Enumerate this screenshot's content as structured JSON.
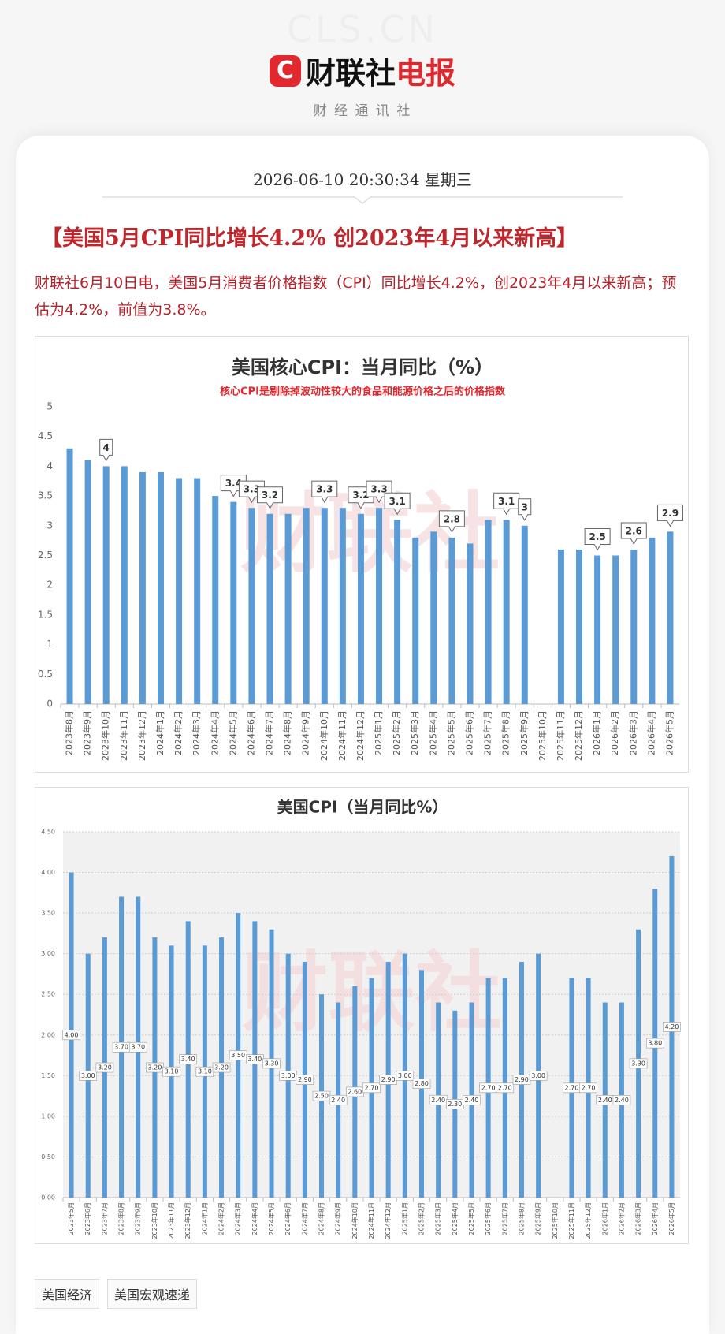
{
  "header": {
    "watermark": "CLS.CN",
    "logo_mark": "C",
    "logo_name": "财联社",
    "logo_accent": "电报",
    "tagline": "财 经 通 讯 社"
  },
  "article": {
    "datetime": "2026-06-10 20:30:34 星期三",
    "headline": "【美国5月CPI同比增长4.2% 创2023年4月以来新高】",
    "body": "财联社6月10日电，美国5月消费者价格指数（CPI）同比增长4.2%，创2023年4月以来新高；预估为4.2%，前值为3.8%。",
    "tags": [
      "美国经济",
      "美国宏观速递"
    ]
  },
  "chart_data": [
    {
      "type": "bar",
      "title": "美国核心CPI：当月同比（%）",
      "subtitle": "核心CPI是剔除掉波动性较大的食品和能源价格之后的价格指数",
      "watermark": "财联社",
      "categories": [
        "2023年8月",
        "2023年9月",
        "2023年10月",
        "2023年11月",
        "2023年12月",
        "2024年1月",
        "2024年2月",
        "2024年3月",
        "2024年4月",
        "2024年5月",
        "2024年6月",
        "2024年7月",
        "2024年8月",
        "2024年9月",
        "2024年10月",
        "2024年11月",
        "2024年12月",
        "2025年1月",
        "2025年2月",
        "2025年3月",
        "2025年4月",
        "2025年5月",
        "2025年6月",
        "2025年7月",
        "2025年8月",
        "2025年9月",
        "2025年10月",
        "2025年11月",
        "2025年12月",
        "2026年1月",
        "2026年2月",
        "2026年3月",
        "2026年4月",
        "2026年5月"
      ],
      "values": [
        4.3,
        4.1,
        4.0,
        4.0,
        3.9,
        3.9,
        3.8,
        3.8,
        3.5,
        3.4,
        3.3,
        3.2,
        3.2,
        3.3,
        3.3,
        3.3,
        3.2,
        3.3,
        3.1,
        2.8,
        2.9,
        2.8,
        2.7,
        3.1,
        3.1,
        3.0,
        null,
        2.6,
        2.6,
        2.5,
        2.5,
        2.6,
        2.8,
        2.9
      ],
      "value_labels": [
        null,
        null,
        "4",
        null,
        null,
        null,
        null,
        null,
        null,
        "3.4",
        "3.3",
        "3.2",
        null,
        null,
        "3.3",
        null,
        "3.2",
        "3.3",
        "3.1",
        null,
        null,
        "2.8",
        null,
        null,
        "3.1",
        "3",
        null,
        null,
        null,
        "2.5",
        null,
        "2.6",
        null,
        "2.9"
      ],
      "value_label_position": "above",
      "color": "#5b9bd5",
      "ylim": [
        0,
        5
      ],
      "yticks": [
        0,
        0.5,
        1,
        1.5,
        2,
        2.5,
        3,
        3.5,
        4,
        4.5,
        5
      ],
      "grid": false
    },
    {
      "type": "bar",
      "title": "美国CPI（当月同比%）",
      "watermark": "财联社",
      "categories": [
        "2023年5月",
        "2023年6月",
        "2023年7月",
        "2023年8月",
        "2023年9月",
        "2023年10月",
        "2023年11月",
        "2023年12月",
        "2024年1月",
        "2024年2月",
        "2024年3月",
        "2024年4月",
        "2024年5月",
        "2024年6月",
        "2024年7月",
        "2024年8月",
        "2024年9月",
        "2024年10月",
        "2024年11月",
        "2024年12月",
        "2025年1月",
        "2025年2月",
        "2025年3月",
        "2025年4月",
        "2025年5月",
        "2025年6月",
        "2025年7月",
        "2025年8月",
        "2025年9月",
        "2025年10月",
        "2025年11月",
        "2025年12月",
        "2026年1月",
        "2026年2月",
        "2026年3月",
        "2026年4月",
        "2026年5月"
      ],
      "values": [
        4.0,
        3.0,
        3.2,
        3.7,
        3.7,
        3.2,
        3.1,
        3.4,
        3.1,
        3.2,
        3.5,
        3.4,
        3.3,
        3.0,
        2.9,
        2.5,
        2.4,
        2.6,
        2.7,
        2.9,
        3.0,
        2.8,
        2.4,
        2.3,
        2.4,
        2.7,
        2.7,
        2.9,
        3.0,
        null,
        2.7,
        2.7,
        2.4,
        2.4,
        3.3,
        3.8,
        4.2
      ],
      "value_labels": [
        "4.00",
        "3.00",
        "3.20",
        "3.70",
        "3.70",
        "3.20",
        "3.10",
        "3.40",
        "3.10",
        "3.20",
        "3.50",
        "3.40",
        "3.30",
        "3.00",
        "2.90",
        "2.50",
        "2.40",
        "2.60",
        "2.70",
        "2.90",
        "3.00",
        "2.80",
        "2.40",
        "2.30",
        "2.40",
        "2.70",
        "2.70",
        "2.90",
        "3.00",
        null,
        "2.70",
        "2.70",
        "2.40",
        "2.40",
        "3.30",
        "3.80",
        "4.20"
      ],
      "value_label_position": "center",
      "color": "#5b9bd5",
      "ylim": [
        0,
        4.5
      ],
      "yticks": [
        {
          "value": 0,
          "label": "0.00"
        },
        {
          "value": 0.5,
          "label": "0.50"
        },
        {
          "value": 1,
          "label": "1.00"
        },
        {
          "value": 1.5,
          "label": "1.50"
        },
        {
          "value": 2,
          "label": "2.00"
        },
        {
          "value": 2.5,
          "label": "2.50"
        },
        {
          "value": 3,
          "label": "3.00"
        },
        {
          "value": 3.5,
          "label": "3.50"
        },
        {
          "value": 4,
          "label": "4.00"
        },
        {
          "value": 4.5,
          "label": "4.50"
        }
      ],
      "grid": true
    }
  ]
}
